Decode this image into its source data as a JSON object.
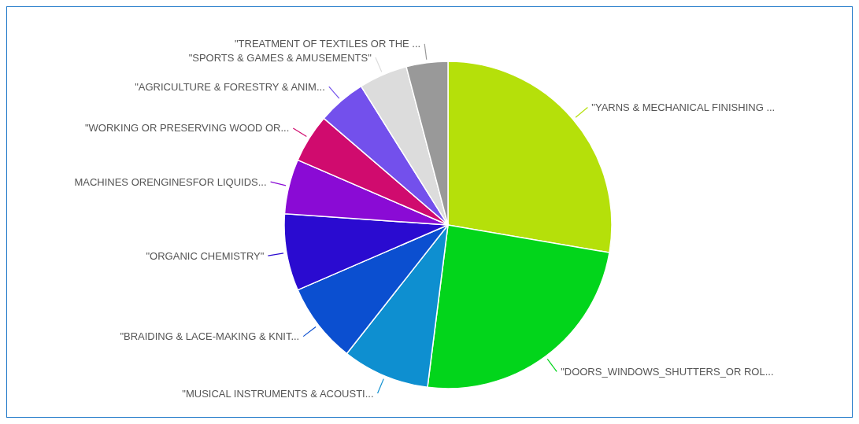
{
  "chart_data": {
    "type": "pie",
    "categories": [
      "\"YARNS & MECHANICAL FINISHING ...",
      "\"DOORS_WINDOWS_SHUTTERS_OR ROL...",
      "\"MUSICAL INSTRUMENTS & ACOUSTI...",
      "\"BRAIDING & LACE-MAKING & KNIT...",
      "\"ORGANIC CHEMISTRY\"",
      "MACHINES ORENGINESFOR LIQUIDS...",
      "\"WORKING OR PRESERVING WOOD OR...",
      "\"AGRICULTURE & FORESTRY & ANIM...",
      "\"SPORTS & GAMES & AMUSEMENTS\"",
      "\"TREATMENT OF TEXTILES OR THE ..."
    ],
    "values": [
      27.7,
      24.3,
      8.6,
      7.9,
      7.6,
      5.4,
      4.8,
      4.8,
      4.8,
      4.1
    ],
    "colors": [
      "#b5e00a",
      "#02d51b",
      "#0e8fd0",
      "#0b4fd0",
      "#2a0bd0",
      "#8a0bd5",
      "#d00b6e",
      "#7350ec",
      "#dcdcdc",
      "#999999"
    ]
  }
}
